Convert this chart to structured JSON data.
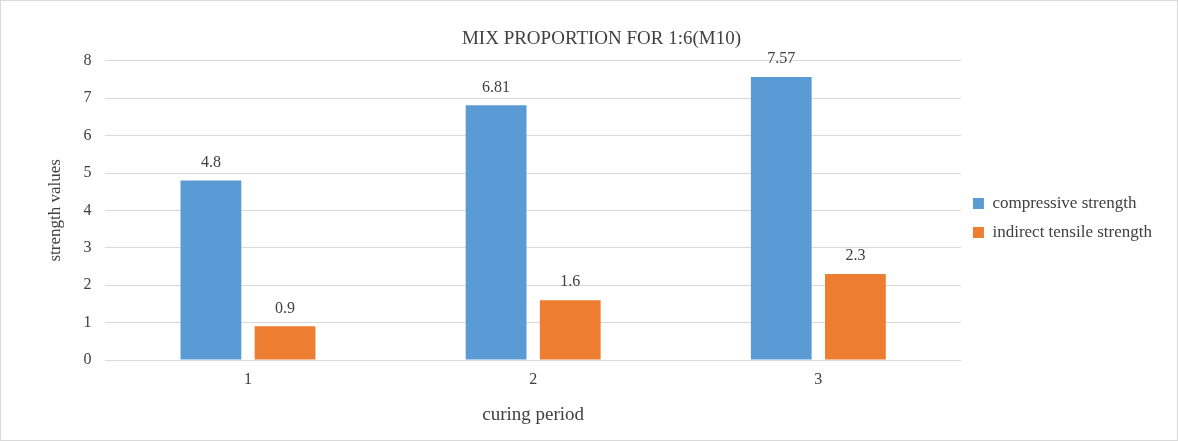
{
  "chart_data": {
    "type": "bar",
    "title": "MIX PROPORTION FOR 1:6(M10)",
    "xlabel": "curing period",
    "ylabel": "strength values",
    "categories": [
      "1",
      "2",
      "3"
    ],
    "series": [
      {
        "name": "compressive strength",
        "color": "#5b9bd5",
        "values": [
          4.8,
          6.81,
          7.57
        ]
      },
      {
        "name": "indirect tensile strength",
        "color": "#ed7d31",
        "values": [
          0.9,
          1.6,
          2.3
        ]
      }
    ],
    "ylim": [
      0,
      8
    ],
    "yticks": [
      0,
      1,
      2,
      3,
      4,
      5,
      6,
      7,
      8
    ],
    "grid": "y",
    "legend": "right",
    "data_labels": true
  }
}
